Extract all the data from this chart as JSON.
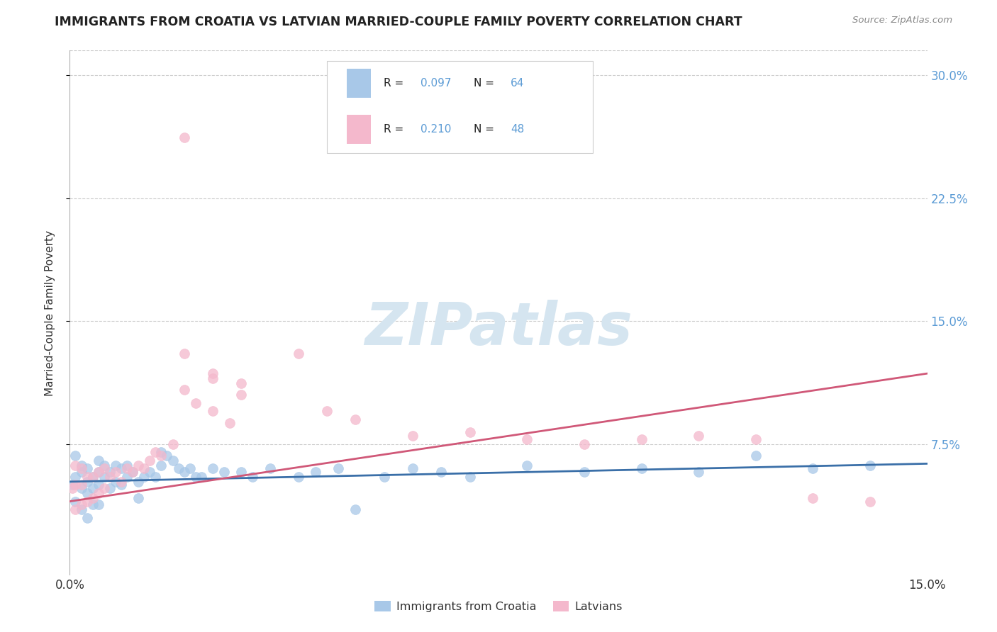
{
  "title": "IMMIGRANTS FROM CROATIA VS LATVIAN MARRIED-COUPLE FAMILY POVERTY CORRELATION CHART",
  "source": "Source: ZipAtlas.com",
  "ylabel": "Married-Couple Family Poverty",
  "yticks": [
    "7.5%",
    "15.0%",
    "22.5%",
    "30.0%"
  ],
  "ytick_vals": [
    0.075,
    0.15,
    0.225,
    0.3
  ],
  "xlim": [
    0.0,
    0.15
  ],
  "ylim": [
    -0.005,
    0.315
  ],
  "croatia_R": "0.097",
  "croatia_N": "64",
  "latvian_R": "0.210",
  "latvian_N": "48",
  "color_croatia": "#a8c8e8",
  "color_latvian": "#f4b8cc",
  "color_croatia_line": "#3a6fa8",
  "color_latvian_line": "#d05878",
  "color_axis_blue": "#5b9bd5",
  "color_text": "#333333",
  "watermark_text": "ZIPatlas",
  "legend_labels": [
    "Immigrants from Croatia",
    "Latvians"
  ],
  "croatia_x": [
    0.0005,
    0.001,
    0.001,
    0.001,
    0.002,
    0.002,
    0.002,
    0.002,
    0.003,
    0.003,
    0.003,
    0.003,
    0.004,
    0.004,
    0.004,
    0.005,
    0.005,
    0.005,
    0.005,
    0.006,
    0.006,
    0.007,
    0.007,
    0.008,
    0.008,
    0.009,
    0.009,
    0.01,
    0.01,
    0.011,
    0.012,
    0.012,
    0.013,
    0.014,
    0.015,
    0.016,
    0.016,
    0.017,
    0.018,
    0.019,
    0.02,
    0.021,
    0.022,
    0.023,
    0.025,
    0.027,
    0.03,
    0.032,
    0.035,
    0.04,
    0.043,
    0.047,
    0.05,
    0.055,
    0.06,
    0.065,
    0.07,
    0.08,
    0.09,
    0.1,
    0.11,
    0.12,
    0.13,
    0.14
  ],
  "croatia_y": [
    0.05,
    0.068,
    0.055,
    0.04,
    0.062,
    0.058,
    0.048,
    0.035,
    0.06,
    0.052,
    0.045,
    0.03,
    0.055,
    0.048,
    0.038,
    0.065,
    0.058,
    0.05,
    0.038,
    0.062,
    0.055,
    0.058,
    0.048,
    0.062,
    0.052,
    0.06,
    0.05,
    0.062,
    0.055,
    0.058,
    0.052,
    0.042,
    0.055,
    0.058,
    0.055,
    0.07,
    0.062,
    0.068,
    0.065,
    0.06,
    0.058,
    0.06,
    0.055,
    0.055,
    0.06,
    0.058,
    0.058,
    0.055,
    0.06,
    0.055,
    0.058,
    0.06,
    0.035,
    0.055,
    0.06,
    0.058,
    0.055,
    0.062,
    0.058,
    0.06,
    0.058,
    0.068,
    0.06,
    0.062
  ],
  "latvian_x": [
    0.0005,
    0.001,
    0.001,
    0.001,
    0.002,
    0.002,
    0.002,
    0.003,
    0.003,
    0.004,
    0.004,
    0.005,
    0.005,
    0.006,
    0.006,
    0.007,
    0.008,
    0.009,
    0.01,
    0.011,
    0.012,
    0.013,
    0.014,
    0.015,
    0.016,
    0.018,
    0.02,
    0.022,
    0.025,
    0.028,
    0.02,
    0.025,
    0.03,
    0.04,
    0.045,
    0.05,
    0.06,
    0.07,
    0.08,
    0.09,
    0.1,
    0.11,
    0.12,
    0.13,
    0.14,
    0.02,
    0.025,
    0.03
  ],
  "latvian_y": [
    0.048,
    0.062,
    0.05,
    0.035,
    0.06,
    0.05,
    0.038,
    0.055,
    0.04,
    0.055,
    0.042,
    0.058,
    0.045,
    0.06,
    0.048,
    0.055,
    0.058,
    0.052,
    0.06,
    0.058,
    0.062,
    0.06,
    0.065,
    0.07,
    0.068,
    0.075,
    0.108,
    0.1,
    0.095,
    0.088,
    0.13,
    0.118,
    0.105,
    0.13,
    0.095,
    0.09,
    0.08,
    0.082,
    0.078,
    0.075,
    0.078,
    0.08,
    0.078,
    0.042,
    0.04,
    0.262,
    0.115,
    0.112
  ],
  "trend_croatia_y0": 0.052,
  "trend_croatia_y1": 0.063,
  "trend_latvian_y0": 0.04,
  "trend_latvian_y1": 0.118
}
